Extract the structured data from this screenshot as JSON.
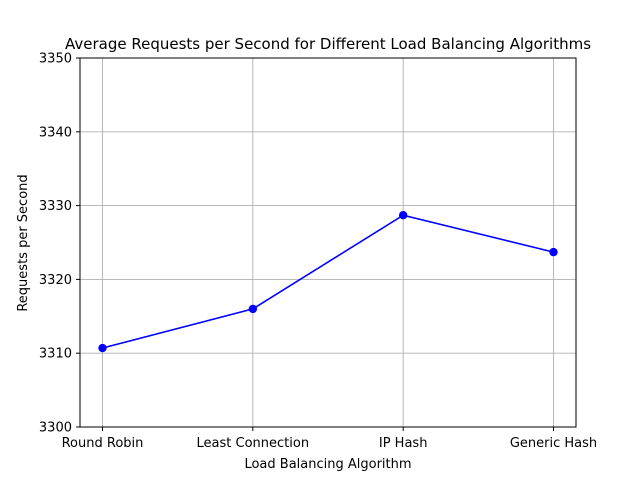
{
  "chart_data": {
    "type": "line",
    "title": "Average Requests per Second for Different Load Balancing Algorithms",
    "xlabel": "Load Balancing Algorithm",
    "ylabel": "Requests per Second",
    "categories": [
      "Round Robin",
      "Least Connection",
      "IP Hash",
      "Generic Hash"
    ],
    "series": [
      {
        "values": [
          3310.7,
          3316.0,
          3328.7,
          3323.7
        ],
        "color": "#0000ff",
        "marker": "circle"
      }
    ],
    "ylim": [
      3300,
      3350
    ],
    "yticks": [
      3300,
      3310,
      3320,
      3330,
      3340,
      3350
    ],
    "grid": true,
    "legend": "none"
  }
}
